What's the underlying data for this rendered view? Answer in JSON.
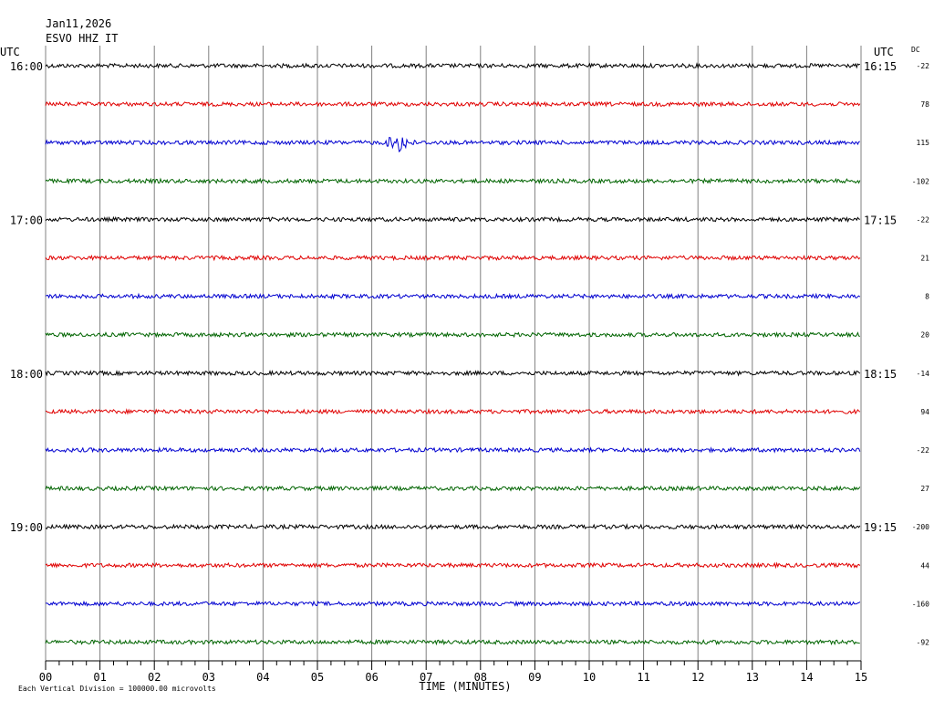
{
  "header": {
    "date": "Jan11,2026",
    "station": "ESVO HHZ IT",
    "left_tz": "UTC",
    "right_tz": "UTC",
    "dc_label": "DC"
  },
  "footer": {
    "xlabel": "TIME (MINUTES)",
    "scale_note": "Each Vertical Division = 100000.00 microvolts"
  },
  "chart_data": {
    "type": "line",
    "title": "Jan11,2026 ESVO HHZ IT",
    "xlabel": "TIME (MINUTES)",
    "ylabel": "",
    "x_ticks": [
      "00",
      "01",
      "02",
      "03",
      "04",
      "05",
      "06",
      "07",
      "08",
      "09",
      "10",
      "11",
      "12",
      "13",
      "14",
      "15"
    ],
    "xlim": [
      0,
      15
    ],
    "minor_ticks_per_minute": 4,
    "grid": true,
    "trace_colors": [
      "#000000",
      "#e00000",
      "#0000d0",
      "#006400"
    ],
    "traces": [
      {
        "left_label": "16:00",
        "right_label": "16:15",
        "dc": "-22",
        "color": "#000000"
      },
      {
        "left_label": "",
        "right_label": "",
        "dc": "78",
        "color": "#e00000"
      },
      {
        "left_label": "",
        "right_label": "",
        "dc": "115",
        "color": "#0000d0",
        "event_minute": [
          6.2,
          6.8
        ]
      },
      {
        "left_label": "",
        "right_label": "",
        "dc": "-102",
        "color": "#006400"
      },
      {
        "left_label": "17:00",
        "right_label": "17:15",
        "dc": "-22",
        "color": "#000000"
      },
      {
        "left_label": "",
        "right_label": "",
        "dc": "21",
        "color": "#e00000"
      },
      {
        "left_label": "",
        "right_label": "",
        "dc": "8",
        "color": "#0000d0"
      },
      {
        "left_label": "",
        "right_label": "",
        "dc": "20",
        "color": "#006400"
      },
      {
        "left_label": "18:00",
        "right_label": "18:15",
        "dc": "-14",
        "color": "#000000"
      },
      {
        "left_label": "",
        "right_label": "",
        "dc": "94",
        "color": "#e00000"
      },
      {
        "left_label": "",
        "right_label": "",
        "dc": "-22",
        "color": "#0000d0"
      },
      {
        "left_label": "",
        "right_label": "",
        "dc": "27",
        "color": "#006400"
      },
      {
        "left_label": "19:00",
        "right_label": "19:15",
        "dc": "-200",
        "color": "#000000"
      },
      {
        "left_label": "",
        "right_label": "",
        "dc": "44",
        "color": "#e00000"
      },
      {
        "left_label": "",
        "right_label": "",
        "dc": "-160",
        "color": "#0000d0"
      },
      {
        "left_label": "",
        "right_label": "",
        "dc": "-92",
        "color": "#006400"
      }
    ]
  }
}
